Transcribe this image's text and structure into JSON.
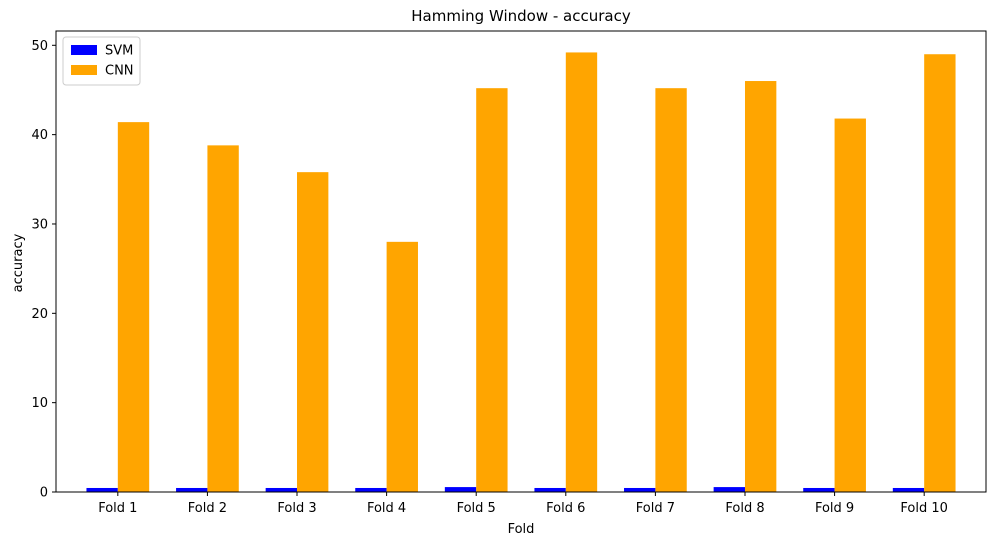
{
  "chart_data": {
    "type": "bar",
    "title": "Hamming Window - accuracy",
    "xlabel": "Fold",
    "ylabel": "accuracy",
    "ylim": [
      0,
      51.6
    ],
    "yticks": [
      0,
      10,
      20,
      30,
      40,
      50
    ],
    "categories": [
      "Fold 1",
      "Fold 2",
      "Fold 3",
      "Fold 4",
      "Fold 5",
      "Fold 6",
      "Fold 7",
      "Fold 8",
      "Fold 9",
      "Fold 10"
    ],
    "series": [
      {
        "name": "SVM",
        "color": "#0000ff",
        "values": [
          0.45,
          0.45,
          0.45,
          0.45,
          0.55,
          0.45,
          0.45,
          0.55,
          0.45,
          0.45
        ]
      },
      {
        "name": "CNN",
        "color": "#ffa500",
        "values": [
          41.4,
          38.8,
          35.8,
          28.0,
          45.2,
          49.2,
          45.2,
          46.0,
          41.8,
          49.0
        ]
      }
    ],
    "grid": false,
    "legend_position": "top-left"
  }
}
